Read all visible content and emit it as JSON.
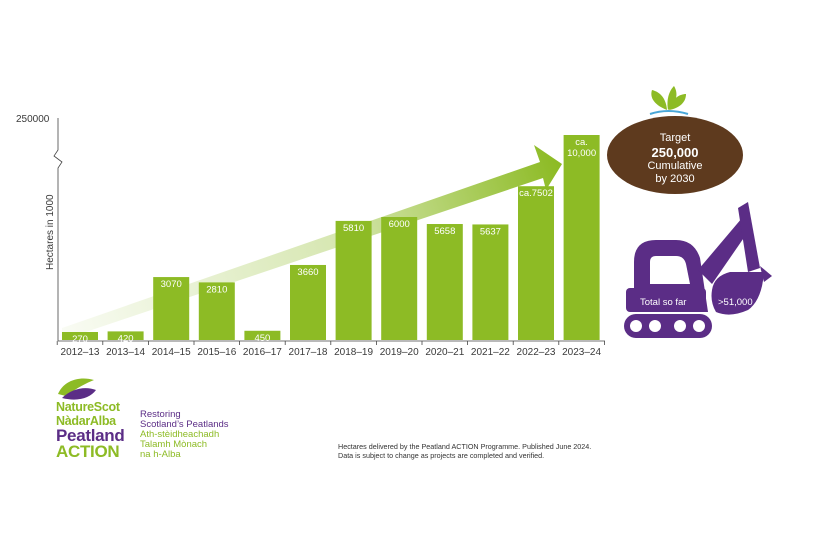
{
  "chart_data": {
    "type": "bar",
    "title": "",
    "xlabel": "",
    "ylabel": "Hectares in 1000",
    "y_top_label": "250000",
    "categories": [
      "2012–13",
      "2013–14",
      "2014–15",
      "2015–16",
      "2016–17",
      "2017–18",
      "2018–19",
      "2019–20",
      "2020–21",
      "2021–22",
      "2022–23",
      "2023–24"
    ],
    "values": [
      270,
      420,
      3070,
      2810,
      450,
      3660,
      5810,
      6000,
      5658,
      5637,
      7502,
      10000
    ],
    "data_labels": [
      "270",
      "420",
      "3070",
      "2810",
      "450",
      "3660",
      "5810",
      "6000",
      "5658",
      "5637",
      "ca.7502",
      "ca. 10,000"
    ],
    "bar_color": "#8dbb25",
    "arrow_color": "#8dbb25",
    "axis_break": true,
    "grid": false
  },
  "target": {
    "line1": "Target",
    "line2": "250,000",
    "line3": "Cumulative",
    "line4": "by 2030",
    "color": "#5e3a1e"
  },
  "excavator": {
    "total_label": "Total so far",
    "total_value": ">51,000",
    "color": "#5b2d86"
  },
  "logo": {
    "line1": "NatureScot",
    "line2": "NàdarAlba",
    "line3": "Peatland",
    "line4": "ACTION",
    "tagline_en_1": "Restoring",
    "tagline_en_2": "Scotland’s Peatlands",
    "tagline_gd_1": "Ath-stèidheachadh",
    "tagline_gd_2": "Talamh Mònach",
    "tagline_gd_3": "na h-Alba"
  },
  "footnote": {
    "line1": "Hectares delivered by the Peatland ACTION Programme. Published June 2024.",
    "line2": "Data is subject to change as projects are completed and verified."
  }
}
